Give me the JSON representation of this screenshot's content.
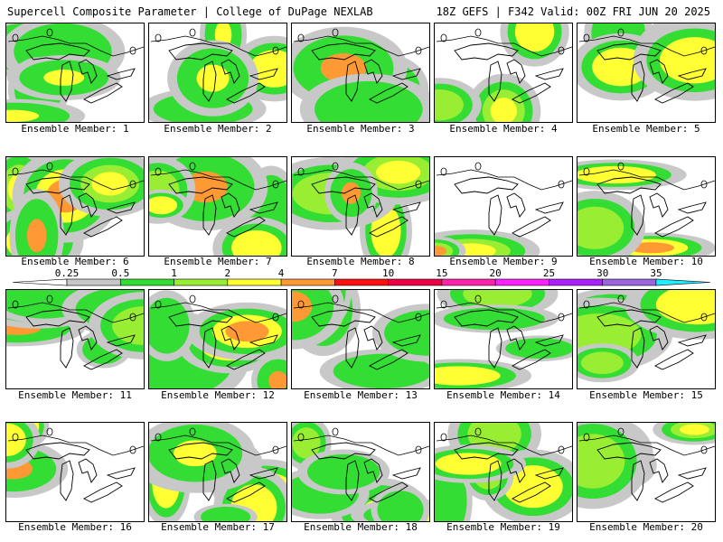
{
  "header": {
    "left": "Supercell Composite Parameter | College of DuPage NEXLAB",
    "right": "18Z GEFS | F342 Valid: 00Z FRI JUN 20 2025"
  },
  "caption_prefix": "Ensemble Member:",
  "legend": {
    "levels": [
      "0.25",
      "0.5",
      "1",
      "2",
      "4",
      "7",
      "10",
      "15",
      "20",
      "25",
      "30",
      "35"
    ],
    "colors": [
      "#c8c8c8",
      "#33dd33",
      "#99ee33",
      "#ffff33",
      "#ff9933",
      "#ff1111",
      "#ee0044",
      "#ff22aa",
      "#ff22ff",
      "#aa22ff",
      "#9966dd",
      "#22eeff"
    ]
  },
  "members": [
    {
      "number": "1"
    },
    {
      "number": "2"
    },
    {
      "number": "3"
    },
    {
      "number": "4"
    },
    {
      "number": "5"
    },
    {
      "number": "6"
    },
    {
      "number": "7"
    },
    {
      "number": "8"
    },
    {
      "number": "9"
    },
    {
      "number": "10"
    },
    {
      "number": "11"
    },
    {
      "number": "12"
    },
    {
      "number": "13"
    },
    {
      "number": "14"
    },
    {
      "number": "15"
    },
    {
      "number": "16"
    },
    {
      "number": "17"
    },
    {
      "number": "18"
    },
    {
      "number": "19"
    },
    {
      "number": "20"
    }
  ]
}
